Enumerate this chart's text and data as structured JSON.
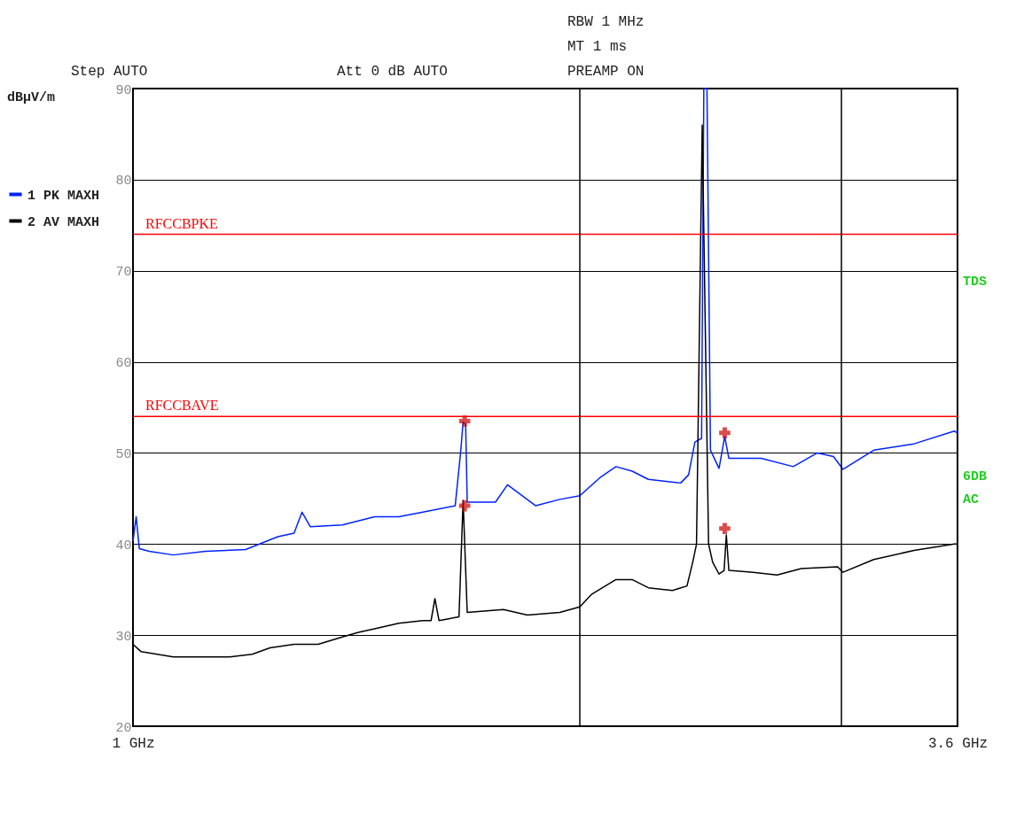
{
  "chart_data": {
    "type": "line",
    "ylabel": "dBµV/m",
    "legend": "left",
    "grid": "y",
    "marker": "none",
    "xlim": [
      1,
      3.6
    ],
    "xticks": [
      {
        "value": 1,
        "label": "1 GHz"
      },
      {
        "value": 3.6,
        "label": "3.6 GHz"
      }
    ],
    "ylim": [
      20,
      90
    ],
    "yticks": [
      20,
      30,
      40,
      50,
      60,
      70,
      80,
      90
    ],
    "series": [
      {
        "name": "1 PK MAXH",
        "color": "#0022ff",
        "x": [
          1.0,
          1.01,
          1.02,
          1.051,
          1.127,
          1.229,
          1.355,
          1.457,
          1.508,
          1.533,
          1.559,
          1.66,
          1.762,
          1.838,
          1.914,
          2.016,
          2.033,
          2.041,
          2.049,
          2.054,
          2.143,
          2.181,
          2.27,
          2.346,
          2.409,
          2.473,
          2.523,
          2.574,
          2.625,
          2.727,
          2.752,
          2.772,
          2.793,
          2.8,
          2.81,
          2.821,
          2.848,
          2.866,
          2.879,
          2.981,
          3.082,
          3.158,
          3.209,
          3.239,
          3.336,
          3.463,
          3.59,
          3.6
        ],
        "values": [
          40.3,
          43,
          39.5,
          39.2,
          38.8,
          39.2,
          39.4,
          40.8,
          41.2,
          43.5,
          41.9,
          42.1,
          43,
          43,
          43.5,
          44.2,
          50,
          53.4,
          53.2,
          44.6,
          44.6,
          46.5,
          44.2,
          44.9,
          45.3,
          47.3,
          48.5,
          48,
          47.1,
          46.7,
          47.6,
          51.2,
          51.6,
          90,
          90,
          50.3,
          48.3,
          51.8,
          49.4,
          49.4,
          48.5,
          50,
          49.6,
          48.2,
          50.3,
          51,
          52.4,
          52.2
        ]
      },
      {
        "name": "2 AV MAXH",
        "color": "#000000",
        "x": [
          1.0,
          1.025,
          1.127,
          1.305,
          1.376,
          1.432,
          1.508,
          1.584,
          1.66,
          1.711,
          1.762,
          1.838,
          1.914,
          1.94,
          1.952,
          1.965,
          2.028,
          2.041,
          2.054,
          2.168,
          2.244,
          2.346,
          2.409,
          2.447,
          2.523,
          2.574,
          2.625,
          2.701,
          2.747,
          2.765,
          2.777,
          2.795,
          2.815,
          2.828,
          2.848,
          2.864,
          2.871,
          2.879,
          2.955,
          3.031,
          3.107,
          3.222,
          3.239,
          3.336,
          3.463,
          3.59,
          3.6
        ],
        "values": [
          29,
          28.2,
          27.6,
          27.6,
          27.9,
          28.6,
          29,
          29,
          29.8,
          30.3,
          30.7,
          31.3,
          31.6,
          31.6,
          34,
          31.6,
          32,
          44.8,
          32.5,
          32.8,
          32.2,
          32.5,
          33.1,
          34.5,
          36.1,
          36.1,
          35.2,
          34.9,
          35.4,
          38,
          40,
          86,
          40,
          38,
          36.7,
          37.1,
          41,
          37.1,
          36.9,
          36.6,
          37.3,
          37.5,
          36.9,
          38.3,
          39.3,
          40,
          40
        ]
      },
      {
        "type": "scatter",
        "marker": "cross",
        "color": "#cc0000",
        "x": [
          2.046,
          2.866,
          2.046,
          2.866
        ],
        "values": [
          53.5,
          52.2,
          44.2,
          41.7
        ]
      }
    ],
    "ref_lines": [
      {
        "axis": "y",
        "value": 74,
        "label": "RFCCBPKE",
        "color": "#ff0000"
      },
      {
        "axis": "y",
        "value": 54,
        "label": "RFCCBAVE",
        "color": "#ff0000"
      },
      {
        "axis": "x",
        "value": 2.409,
        "color": "#000000"
      },
      {
        "axis": "x",
        "value": 3.234,
        "color": "#000000"
      }
    ],
    "annotations": [
      "RBW 1 MHz",
      "MT 1 ms",
      "Step AUTO",
      "Att 0 dB AUTO",
      "PREAMP ON",
      "TDS",
      "6DB",
      "AC"
    ]
  }
}
